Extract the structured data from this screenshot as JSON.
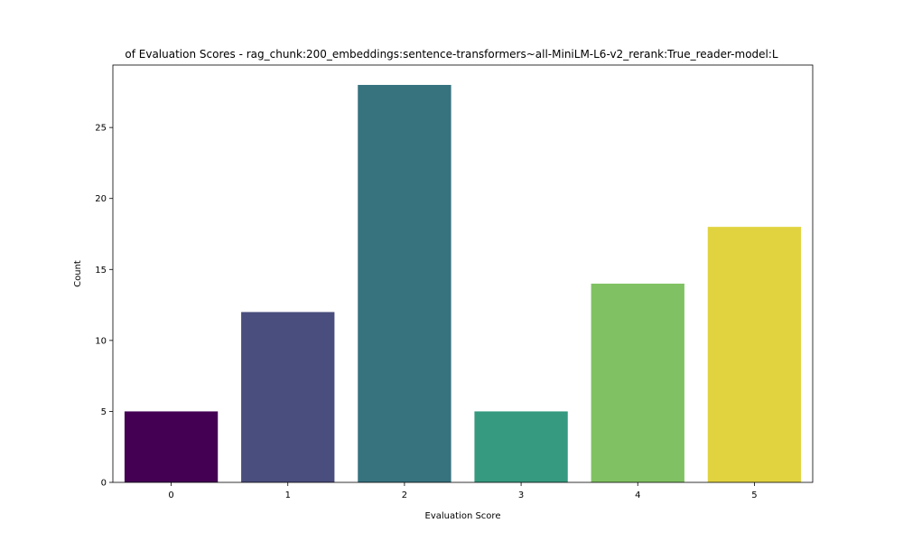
{
  "chart_data": {
    "type": "bar",
    "title": "of Evaluation Scores - rag_chunk:200_embeddings:sentence-transformers~all-MiniLM-L6-v2_rerank:True_reader-model:L",
    "xlabel": "Evaluation Score",
    "ylabel": "Count",
    "categories": [
      "0",
      "1",
      "2",
      "3",
      "4",
      "5"
    ],
    "values": [
      5,
      12,
      28,
      5,
      14,
      18
    ],
    "colors": [
      "#440154",
      "#4a4e7e",
      "#36737f",
      "#359a7f",
      "#80c263",
      "#e1d340"
    ],
    "ylim": [
      0,
      29.4
    ],
    "yticks": [
      0,
      5,
      10,
      15,
      20,
      25
    ],
    "grid": false,
    "legend": false
  }
}
